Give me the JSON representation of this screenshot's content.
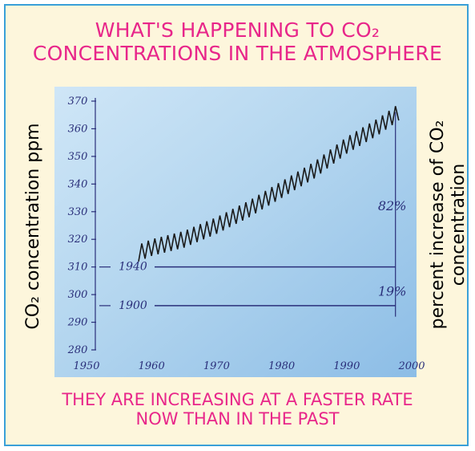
{
  "title_line1": "WHAT'S HAPPENING TO CO₂",
  "title_line2": "CONCENTRATIONS IN THE ATMOSPHERE",
  "caption_line1": "THEY ARE INCREASING AT A FASTER RATE",
  "caption_line2": "NOW THAN IN THE PAST",
  "colors": {
    "accent": "#e8268a",
    "border": "#3aa0d8",
    "plot_bg": "#b9d9f0",
    "trace": "#1a1a1a",
    "ink": "#2a2f7a"
  },
  "chart_data": {
    "type": "line",
    "title": "",
    "ylabel": "CO₂ concentration ppm",
    "ylabel_right_line1": "percent increase of CO₂",
    "ylabel_right_line2": "concentration",
    "xlim": [
      1950,
      2000
    ],
    "ylim": [
      280,
      370
    ],
    "x_ticks": [
      1950,
      1960,
      1970,
      1980,
      1990,
      2000
    ],
    "y_ticks": [
      280,
      290,
      300,
      310,
      320,
      330,
      340,
      350,
      360,
      370
    ],
    "series": [
      {
        "x": [
          1958,
          1960,
          1965,
          1970,
          1975,
          1980,
          1985,
          1990,
          1995,
          1998
        ],
        "y": [
          315,
          317,
          320,
          325,
          331,
          338,
          345,
          354,
          361,
          366
        ],
        "seasonal_amplitude_ppm": 3
      }
    ],
    "reference_lines": [
      {
        "label": "1940",
        "value": 310
      },
      {
        "label": "1900",
        "value": 296
      }
    ],
    "annotations": [
      {
        "text": "82%",
        "x": 1997,
        "y": 332
      },
      {
        "text": "19%",
        "x": 1997,
        "y": 301
      }
    ],
    "grid": false
  }
}
